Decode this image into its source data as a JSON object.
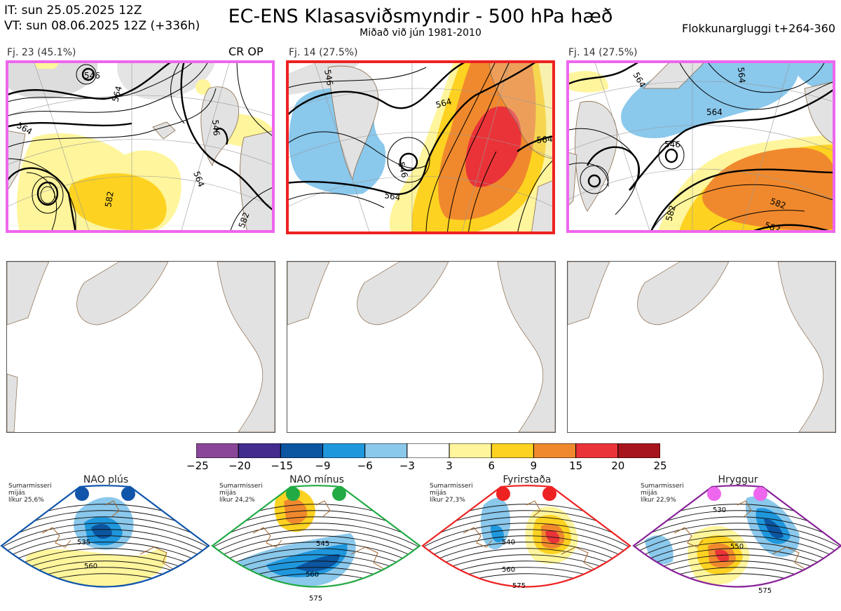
{
  "header": {
    "it_line": "IT: sun 25.05.2025 12Z",
    "vt_line": "VT: sun 08.06.2025 12Z  (+336h)",
    "title": "EC-ENS Klasasviðsmyndir - 500 hPa hæð",
    "subtitle": "Miðað við jún 1981-2010",
    "window": "Flokkunargluggi t+264-360"
  },
  "clusters": [
    {
      "label": "Fj. 23 (45.1%)",
      "extra": "CR OP",
      "frame_color": "#ee66ee",
      "contours": [
        "564",
        "546",
        "564",
        "582",
        "546",
        "564",
        "582"
      ]
    },
    {
      "label": "Fj. 14 (27.5%)",
      "extra": "",
      "frame_color": "#ee2222",
      "contours": [
        "546",
        "564",
        "546",
        "564",
        "564"
      ]
    },
    {
      "label": "Fj. 14 (27.5%)",
      "extra": "",
      "frame_color": "#ee66ee",
      "contours": [
        "564",
        "564",
        "564",
        "546",
        "582",
        "582",
        "582"
      ]
    }
  ],
  "colorbar": {
    "ticks": [
      "−25",
      "−20",
      "−15",
      "−9",
      "−6",
      "−3",
      "3",
      "6",
      "9",
      "15",
      "20",
      "25"
    ],
    "colors": [
      "#8a4799",
      "#432c8e",
      "#0b55a1",
      "#1f97dd",
      "#8ac8ec",
      "#ffffff",
      "#fff59c",
      "#fdd221",
      "#f0892d",
      "#ea3338",
      "#a8141d"
    ]
  },
  "regimes": [
    {
      "name": "NAO plús",
      "season": "Sumarmisseri",
      "text2": "mijás",
      "prob": "líkur 25,6%",
      "color": "#1155aa",
      "dot": "#1155aa",
      "contours": [
        "535",
        "560"
      ]
    },
    {
      "name": "NAO mínus",
      "season": "Sumarmisseri",
      "text2": "mijás",
      "prob": "líkur 24,2%",
      "color": "#22aa44",
      "dot": "#22aa44",
      "contours": [
        "545",
        "560",
        "575"
      ]
    },
    {
      "name": "Fyrirstaða",
      "season": "Sumarmisseri",
      "text2": "mijás",
      "prob": "líkur 27,3%",
      "color": "#ee2222",
      "dot": "#ee2222",
      "contours": [
        "540",
        "560",
        "575"
      ]
    },
    {
      "name": "Hryggur",
      "season": "Sumarmisseri",
      "text2": "mijás",
      "prob": "líkur 22,9%",
      "color": "#882299",
      "dot": "#ee66ee",
      "contours": [
        "530",
        "550",
        "575"
      ]
    }
  ]
}
